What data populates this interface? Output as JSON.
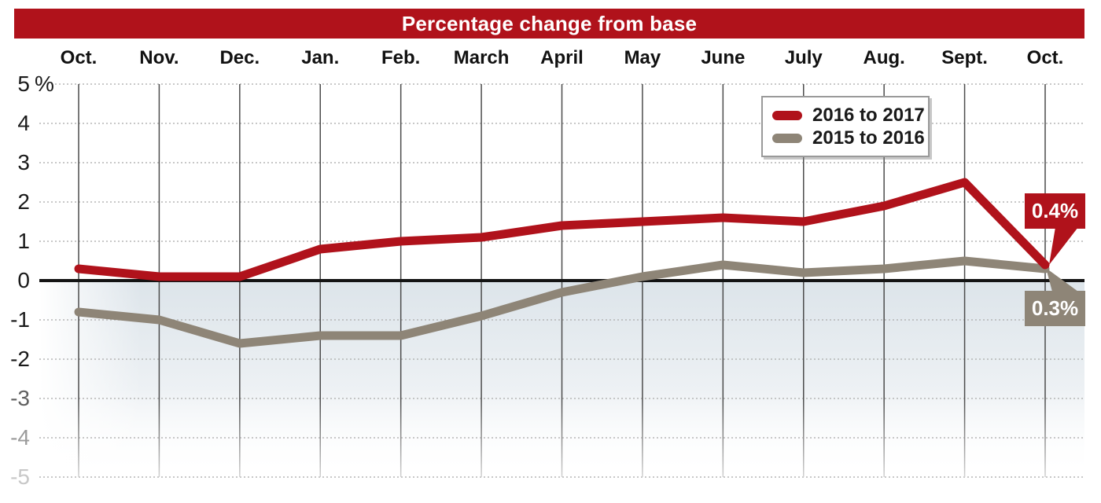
{
  "title_bar": {
    "label": "Percentage change from base",
    "background": "#b0121b",
    "text_color": "#ffffff"
  },
  "chart_data": {
    "type": "line",
    "title": "Percentage change from base",
    "x_categories": [
      "Oct.",
      "Nov.",
      "Dec.",
      "Jan.",
      "Feb.",
      "March",
      "April",
      "May",
      "June",
      "July",
      "Aug.",
      "Sept.",
      "Oct."
    ],
    "y_axis": {
      "ticks": [
        5,
        4,
        3,
        2,
        1,
        0,
        -1,
        -2,
        -3,
        -4,
        -5
      ],
      "unit_suffix": "%",
      "range": [
        -5,
        5
      ]
    },
    "series": [
      {
        "name": "2016 to 2017",
        "color": "#b0121b",
        "values": [
          0.3,
          0.1,
          0.1,
          0.8,
          1.0,
          1.1,
          1.4,
          1.5,
          1.6,
          1.5,
          1.9,
          2.5,
          0.4
        ]
      },
      {
        "name": "2015 to 2016",
        "color": "#8e8577",
        "values": [
          -0.8,
          -1.0,
          -1.6,
          -1.4,
          -1.4,
          -0.9,
          -0.3,
          0.1,
          0.4,
          0.2,
          0.3,
          0.5,
          0.3
        ]
      }
    ],
    "end_labels": [
      {
        "label": "0.4%",
        "series": "2016 to 2017",
        "color": "#b0121b"
      },
      {
        "label": "0.3%",
        "series": "2015 to 2016",
        "color": "#8e8577"
      }
    ],
    "legend": {
      "position": "top-right",
      "entries": [
        "2016 to 2017",
        "2015 to 2016"
      ]
    },
    "grid": {
      "horizontal": "dotted",
      "vertical": "solid",
      "zero_line": "bold-solid"
    },
    "colors": {
      "below_zero_fill": "#dbe3e9",
      "dotted_grid": "#b5b5b5",
      "vertical_grid": "#4c4c4c"
    }
  }
}
